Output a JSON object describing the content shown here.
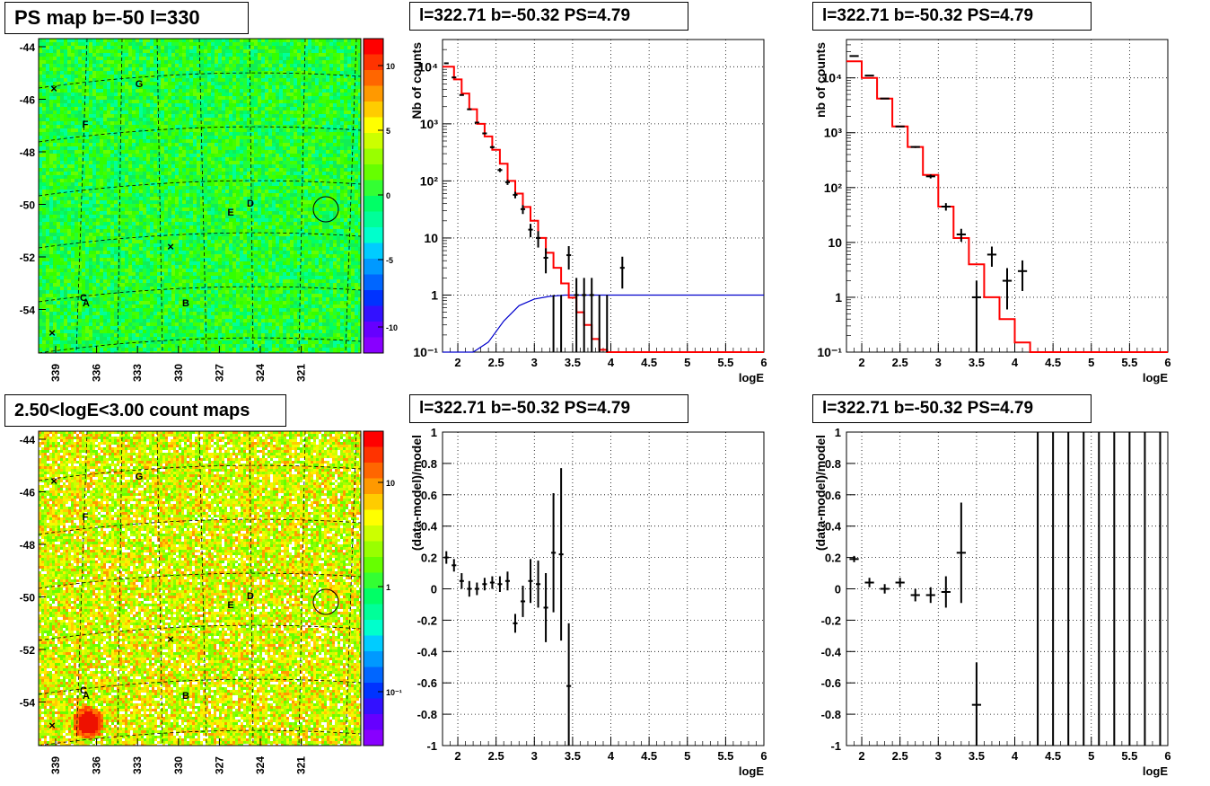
{
  "page": {
    "map_title": "PS map b=-50 l=330",
    "count_title": "2.50<logE<3.00 count maps",
    "panel_title": "l=322.71 b=-50.32 PS=4.79"
  },
  "colors": {
    "data": "#000000",
    "model": "#ff0000",
    "background_model": "#0000cc",
    "grid": "#000000"
  },
  "maps": {
    "x_ticks": [
      "339",
      "336",
      "333",
      "330",
      "327",
      "324",
      "321"
    ],
    "y_ticks": [
      "-44",
      "-46",
      "-48",
      "-50",
      "-52",
      "-54"
    ],
    "source_labels": [
      "A",
      "B",
      "C",
      "D",
      "E",
      "F",
      "G"
    ],
    "ps_colorbar_ticks": [
      "10",
      "5",
      "0",
      "-5",
      "-10"
    ],
    "count_colorbar_ticks": [
      "10",
      "1",
      "10⁻¹"
    ]
  },
  "chart_data": [
    {
      "type": "heatmap",
      "title": "PS map b=-50 l=330",
      "xlabel": "",
      "ylabel": "",
      "x_ticks": [
        339,
        336,
        333,
        330,
        327,
        324,
        321
      ],
      "y_ticks": [
        -44,
        -46,
        -48,
        -50,
        -52,
        -54
      ],
      "colorbar_ticks": [
        10,
        5,
        0,
        -5,
        -10
      ],
      "color_range": [
        -12,
        12
      ],
      "markers": [
        "A",
        "B",
        "C",
        "D",
        "E",
        "F",
        "G"
      ],
      "grid": true
    },
    {
      "type": "line",
      "title": "l=322.71 b=-50.32 PS=4.79",
      "xlabel": "logE",
      "ylabel": "Nb of counts",
      "xlim": [
        1.8,
        6
      ],
      "ylim": [
        0.1,
        30000
      ],
      "yscale": "log",
      "x_ticks": [
        2,
        2.5,
        3,
        3.5,
        4,
        4.5,
        5,
        5.5,
        6
      ],
      "y_ticks": [
        "10⁻¹",
        "1",
        "10",
        "10²",
        "10³",
        "10⁴"
      ],
      "grid": true,
      "data_points": {
        "x": [
          1.85,
          1.95,
          2.05,
          2.15,
          2.25,
          2.35,
          2.45,
          2.55,
          2.65,
          2.75,
          2.85,
          2.95,
          3.05,
          3.15,
          3.25,
          3.35,
          3.45,
          3.55,
          3.65,
          3.75,
          3.85,
          3.95,
          4.15
        ],
        "y": [
          11500,
          6500,
          3200,
          1800,
          1050,
          680,
          390,
          155,
          95,
          57,
          32,
          14,
          10,
          4.5,
          0,
          0,
          5,
          1,
          1,
          1,
          0,
          0,
          3
        ],
        "err": [
          110,
          80,
          57,
          42,
          32,
          26,
          20,
          12,
          10,
          7.5,
          5.7,
          3.7,
          3.2,
          2.1,
          1,
          1,
          2.2,
          1,
          1,
          1,
          1,
          1,
          1.7
        ]
      },
      "model_hist": {
        "x": [
          1.85,
          1.95,
          2.05,
          2.15,
          2.25,
          2.35,
          2.45,
          2.55,
          2.65,
          2.75,
          2.85,
          2.95,
          3.05,
          3.15,
          3.25,
          3.35,
          3.45,
          3.55,
          3.65,
          3.75,
          3.85,
          3.95,
          4.05,
          4.5,
          5,
          5.5,
          6
        ],
        "y": [
          10000,
          6000,
          3400,
          1800,
          1000,
          600,
          350,
          200,
          100,
          60,
          35,
          20,
          10,
          5.5,
          3,
          1.6,
          0.9,
          0.5,
          0.3,
          0.17,
          0.11,
          0.1,
          0.1,
          0.1,
          0.1,
          0.1,
          0.1
        ]
      },
      "background_curve": {
        "x": [
          1.8,
          2.2,
          2.4,
          2.6,
          2.8,
          3.0,
          3.2,
          3.4,
          3.6,
          4.0,
          5.0,
          6.0
        ],
        "y": [
          0.1,
          0.1,
          0.15,
          0.35,
          0.65,
          0.85,
          0.95,
          1,
          1,
          1,
          1,
          1
        ]
      }
    },
    {
      "type": "line",
      "title": "l=322.71 b=-50.32 PS=4.79",
      "xlabel": "logE",
      "ylabel": "nb of counts",
      "xlim": [
        1.8,
        6
      ],
      "ylim": [
        0.1,
        50000
      ],
      "yscale": "log",
      "x_ticks": [
        2,
        2.5,
        3,
        3.5,
        4,
        4.5,
        5,
        5.5,
        6
      ],
      "y_ticks": [
        "10⁻¹",
        "1",
        "10",
        "10²",
        "10³",
        "10⁴"
      ],
      "grid": true,
      "data_points": {
        "x": [
          1.9,
          2.1,
          2.3,
          2.5,
          2.7,
          2.9,
          3.1,
          3.3,
          3.5,
          3.7,
          3.9,
          4.1
        ],
        "y": [
          25000,
          11000,
          4200,
          1300,
          550,
          160,
          45,
          14,
          1,
          6,
          2,
          3
        ],
        "err": [
          160,
          105,
          65,
          36,
          23,
          13,
          7,
          3.7,
          1,
          2.4,
          1.4,
          1.7
        ]
      },
      "model_hist": {
        "x": [
          1.8,
          2.0,
          2.2,
          2.4,
          2.6,
          2.8,
          3.0,
          3.2,
          3.4,
          3.6,
          3.8,
          4.0,
          4.2,
          6.0
        ],
        "y": [
          20000,
          10000,
          4200,
          1300,
          550,
          170,
          45,
          12,
          4,
          1,
          0.4,
          0.15,
          0.1,
          0.1
        ]
      }
    },
    {
      "type": "heatmap",
      "title": "2.50<logE<3.00 count maps",
      "xlabel": "",
      "ylabel": "",
      "x_ticks": [
        339,
        336,
        333,
        330,
        327,
        324,
        321
      ],
      "y_ticks": [
        -44,
        -46,
        -48,
        -50,
        -52,
        -54
      ],
      "colorbar_ticks": [
        "10",
        "1",
        "10⁻¹"
      ],
      "markers": [
        "A",
        "B",
        "C",
        "D",
        "E",
        "F",
        "G"
      ],
      "grid": true
    },
    {
      "type": "scatter",
      "title": "l=322.71 b=-50.32 PS=4.79",
      "xlabel": "logE",
      "ylabel": "(data-model)/model",
      "xlim": [
        1.8,
        6
      ],
      "ylim": [
        -1,
        1
      ],
      "x_ticks": [
        2,
        2.5,
        3,
        3.5,
        4,
        4.5,
        5,
        5.5,
        6
      ],
      "y_ticks": [
        -1,
        -0.8,
        -0.6,
        -0.4,
        -0.2,
        0,
        0.2,
        0.4,
        0.6,
        0.8,
        1
      ],
      "grid": true,
      "points": {
        "x": [
          1.85,
          1.95,
          2.05,
          2.15,
          2.25,
          2.35,
          2.45,
          2.55,
          2.65,
          2.75,
          2.85,
          2.95,
          3.05,
          3.15,
          3.25,
          3.35,
          3.45
        ],
        "y": [
          0.2,
          0.15,
          0.05,
          0.0,
          0.0,
          0.03,
          0.04,
          0.03,
          0.05,
          -0.22,
          -0.08,
          0.05,
          0.03,
          -0.12,
          0.23,
          0.22,
          -0.62
        ],
        "err": [
          0.04,
          0.04,
          0.05,
          0.05,
          0.04,
          0.04,
          0.04,
          0.05,
          0.06,
          0.06,
          0.1,
          0.14,
          0.15,
          0.22,
          0.38,
          0.55,
          0.4
        ]
      }
    },
    {
      "type": "scatter",
      "title": "l=322.71 b=-50.32 PS=4.79",
      "xlabel": "logE",
      "ylabel": "(data-model)/model",
      "xlim": [
        1.8,
        6
      ],
      "ylim": [
        -1,
        1
      ],
      "x_ticks": [
        2,
        2.5,
        3,
        3.5,
        4,
        4.5,
        5,
        5.5,
        6
      ],
      "y_ticks": [
        -1,
        -0.8,
        -0.6,
        -0.4,
        -0.2,
        0,
        0.2,
        0.4,
        0.6,
        0.8,
        1
      ],
      "grid": true,
      "points": {
        "x": [
          1.9,
          2.1,
          2.3,
          2.5,
          2.7,
          2.9,
          3.1,
          3.3,
          3.5
        ],
        "y": [
          0.19,
          0.04,
          0.0,
          0.04,
          -0.04,
          -0.04,
          -0.02,
          0.23,
          -0.74
        ],
        "err": [
          0.02,
          0.03,
          0.03,
          0.03,
          0.04,
          0.05,
          0.1,
          0.32,
          0.27
        ]
      },
      "full_range_bars_x": [
        4.3,
        4.5,
        4.7,
        4.9,
        5.1,
        5.3,
        5.5,
        5.7,
        5.9
      ]
    }
  ]
}
